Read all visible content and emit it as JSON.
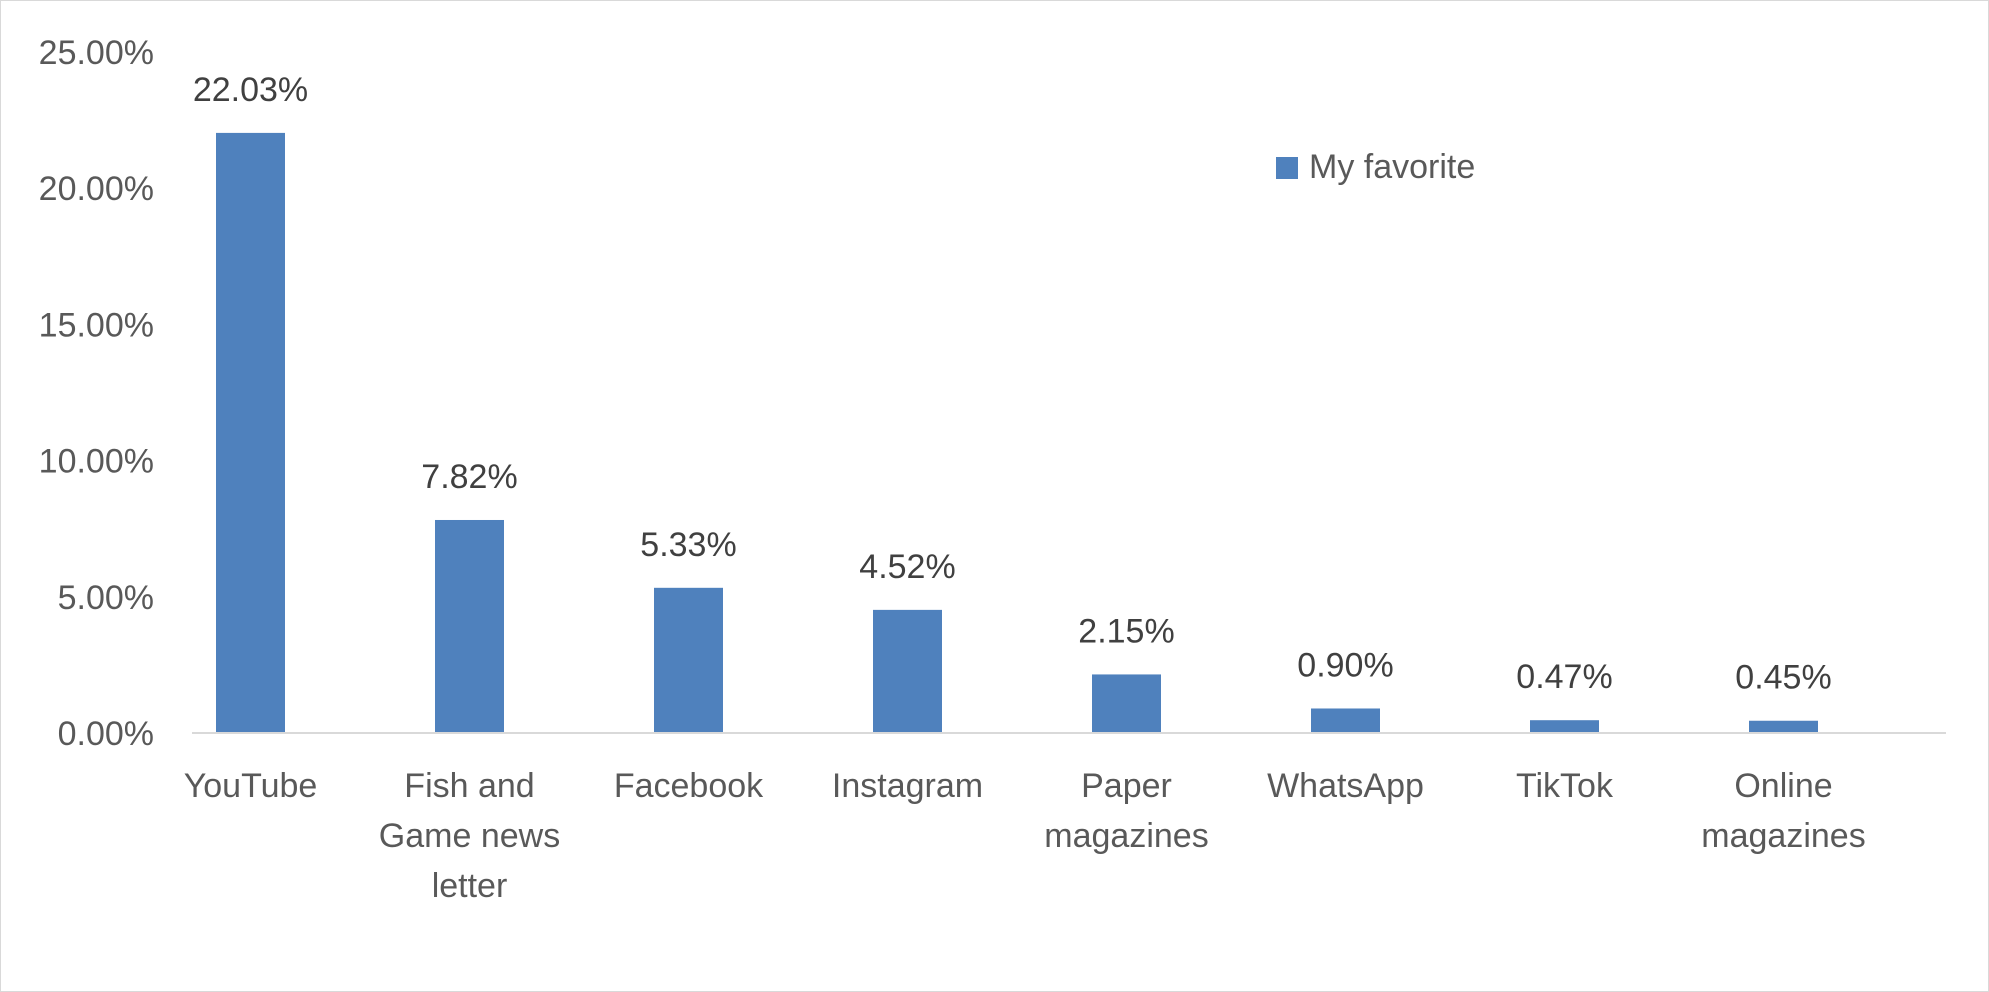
{
  "chart_data": {
    "type": "bar",
    "title": "",
    "xlabel": "",
    "ylabel": "",
    "ylim": [
      0,
      25
    ],
    "y_ticks": [
      0,
      5,
      10,
      15,
      20,
      25
    ],
    "y_tick_labels": [
      "0.00%",
      "5.00%",
      "10.00%",
      "15.00%",
      "20.00%",
      "25.00%"
    ],
    "grid": false,
    "legend_position": "top-right",
    "categories": [
      [
        "YouTube"
      ],
      [
        "Fish and",
        "Game news",
        "letter"
      ],
      [
        "Facebook"
      ],
      [
        "Instagram"
      ],
      [
        "Paper",
        "magazines"
      ],
      [
        "WhatsApp"
      ],
      [
        "TikTok"
      ],
      [
        "Online",
        "magazines"
      ]
    ],
    "series": [
      {
        "name": "My favorite",
        "color": "#4f81bd",
        "values": [
          22.03,
          7.82,
          5.33,
          4.52,
          2.15,
          0.9,
          0.47,
          0.45
        ],
        "data_labels": [
          "22.03%",
          "7.82%",
          "5.33%",
          "4.52%",
          "2.15%",
          "0.90%",
          "0.47%",
          "0.45%"
        ]
      }
    ]
  }
}
